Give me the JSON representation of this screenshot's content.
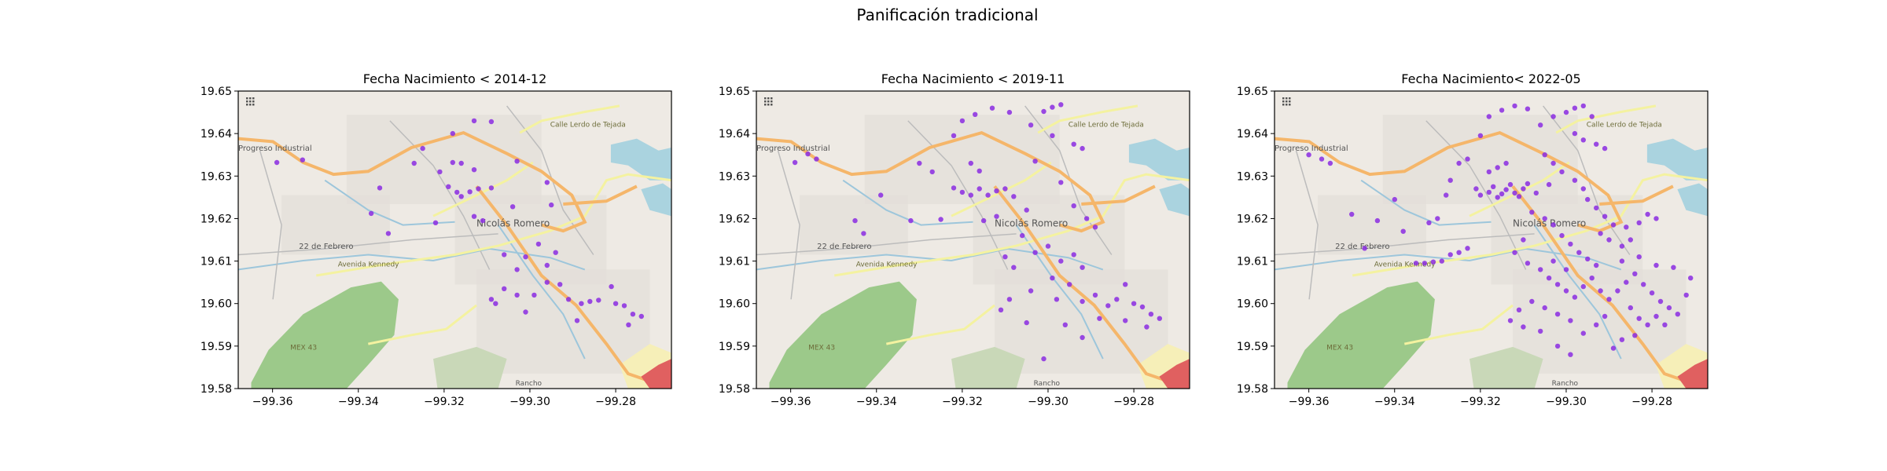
{
  "figure": {
    "suptitle": "Panificación tradicional"
  },
  "colors": {
    "point": "#8a2be2",
    "water": "#aad3df",
    "river": "#9dc6db",
    "park": "#9cc98a",
    "land": "#eeeae4",
    "primary_road": "#f5b66a",
    "secondary_road": "#f4f2a0",
    "motorway": "#e06060"
  },
  "map_labels": {
    "town": "Nicolás Romero",
    "district_1": "Progreso Industrial",
    "district_2": "22 de Febrero",
    "road_1": "Avenida Kennedy",
    "road_2": "Calle Lerdo de Tejada",
    "road_3": "MEX 43",
    "area_1": "Rancho"
  },
  "chart_data": [
    {
      "type": "scatter",
      "title": "Fecha Nacimiento < 2014-12",
      "xlim": [
        -99.368,
        -99.267
      ],
      "ylim": [
        19.58,
        19.65
      ],
      "xticks": [
        "−99.36",
        "−99.34",
        "−99.32",
        "−99.30",
        "−99.28"
      ],
      "yticks": [
        "19.58",
        "19.59",
        "19.60",
        "19.61",
        "19.62",
        "19.63",
        "19.64",
        "19.65"
      ],
      "background": "OpenStreetMap basemap",
      "points": [
        [
          -99.359,
          19.6332
        ],
        [
          -99.353,
          19.6338
        ],
        [
          -99.335,
          19.6272
        ],
        [
          -99.337,
          19.6212
        ],
        [
          -99.333,
          19.6165
        ],
        [
          -99.327,
          19.633
        ],
        [
          -99.321,
          19.631
        ],
        [
          -99.322,
          19.619
        ],
        [
          -99.325,
          19.6365
        ],
        [
          -99.318,
          19.64
        ],
        [
          -99.313,
          19.643
        ],
        [
          -99.309,
          19.6428
        ],
        [
          -99.318,
          19.6332
        ],
        [
          -99.316,
          19.633
        ],
        [
          -99.313,
          19.6315
        ],
        [
          -99.319,
          19.6275
        ],
        [
          -99.317,
          19.6262
        ],
        [
          -99.316,
          19.6252
        ],
        [
          -99.314,
          19.6263
        ],
        [
          -99.312,
          19.627
        ],
        [
          -99.309,
          19.6272
        ],
        [
          -99.313,
          19.6205
        ],
        [
          -99.311,
          19.6195
        ],
        [
          -99.304,
          19.6228
        ],
        [
          -99.303,
          19.6335
        ],
        [
          -99.296,
          19.6285
        ],
        [
          -99.295,
          19.6232
        ],
        [
          -99.306,
          19.6115
        ],
        [
          -99.301,
          19.611
        ],
        [
          -99.298,
          19.614
        ],
        [
          -99.296,
          19.609
        ],
        [
          -99.294,
          19.612
        ],
        [
          -99.303,
          19.608
        ],
        [
          -99.306,
          19.6035
        ],
        [
          -99.303,
          19.602
        ],
        [
          -99.309,
          19.601
        ],
        [
          -99.299,
          19.602
        ],
        [
          -99.296,
          19.605
        ],
        [
          -99.293,
          19.6045
        ],
        [
          -99.291,
          19.601
        ],
        [
          -99.288,
          19.6
        ],
        [
          -99.286,
          19.6005
        ],
        [
          -99.284,
          19.6008
        ],
        [
          -99.281,
          19.604
        ],
        [
          -99.28,
          19.6
        ],
        [
          -99.278,
          19.5995
        ],
        [
          -99.276,
          19.5975
        ],
        [
          -99.274,
          19.597
        ],
        [
          -99.277,
          19.595
        ],
        [
          -99.289,
          19.596
        ],
        [
          -99.308,
          19.6
        ],
        [
          -99.301,
          19.598
        ]
      ]
    },
    {
      "type": "scatter",
      "title": "Fecha Nacimiento < 2019-11",
      "xlim": [
        -99.368,
        -99.267
      ],
      "ylim": [
        19.58,
        19.65
      ],
      "xticks": [
        "−99.36",
        "−99.34",
        "−99.32",
        "−99.30",
        "−99.28"
      ],
      "yticks": [
        "19.58",
        "19.59",
        "19.60",
        "19.61",
        "19.62",
        "19.63",
        "19.64",
        "19.65"
      ],
      "background": "OpenStreetMap basemap",
      "points": [
        [
          -99.359,
          19.6332
        ],
        [
          -99.356,
          19.6352
        ],
        [
          -99.354,
          19.634
        ],
        [
          -99.345,
          19.6195
        ],
        [
          -99.343,
          19.6165
        ],
        [
          -99.339,
          19.6255
        ],
        [
          -99.332,
          19.6195
        ],
        [
          -99.33,
          19.633
        ],
        [
          -99.327,
          19.631
        ],
        [
          -99.325,
          19.6198
        ],
        [
          -99.322,
          19.6395
        ],
        [
          -99.32,
          19.643
        ],
        [
          -99.317,
          19.6445
        ],
        [
          -99.313,
          19.646
        ],
        [
          -99.309,
          19.645
        ],
        [
          -99.304,
          19.642
        ],
        [
          -99.301,
          19.6452
        ],
        [
          -99.299,
          19.6462
        ],
        [
          -99.297,
          19.6468
        ],
        [
          -99.299,
          19.6395
        ],
        [
          -99.294,
          19.6375
        ],
        [
          -99.292,
          19.6365
        ],
        [
          -99.318,
          19.633
        ],
        [
          -99.316,
          19.6312
        ],
        [
          -99.322,
          19.6272
        ],
        [
          -99.32,
          19.6262
        ],
        [
          -99.318,
          19.6255
        ],
        [
          -99.316,
          19.627
        ],
        [
          -99.314,
          19.6255
        ],
        [
          -99.312,
          19.6265
        ],
        [
          -99.31,
          19.627
        ],
        [
          -99.308,
          19.6252
        ],
        [
          -99.312,
          19.6205
        ],
        [
          -99.315,
          19.6195
        ],
        [
          -99.305,
          19.622
        ],
        [
          -99.303,
          19.6335
        ],
        [
          -99.297,
          19.6285
        ],
        [
          -99.294,
          19.623
        ],
        [
          -99.291,
          19.62
        ],
        [
          -99.289,
          19.618
        ],
        [
          -99.306,
          19.616
        ],
        [
          -99.31,
          19.611
        ],
        [
          -99.308,
          19.6085
        ],
        [
          -99.303,
          19.612
        ],
        [
          -99.3,
          19.6135
        ],
        [
          -99.297,
          19.61
        ],
        [
          -99.294,
          19.6115
        ],
        [
          -99.292,
          19.6085
        ],
        [
          -99.299,
          19.606
        ],
        [
          -99.304,
          19.603
        ],
        [
          -99.309,
          19.601
        ],
        [
          -99.311,
          19.5985
        ],
        [
          -99.298,
          19.601
        ],
        [
          -99.295,
          19.6045
        ],
        [
          -99.292,
          19.6005
        ],
        [
          -99.289,
          19.602
        ],
        [
          -99.286,
          19.5995
        ],
        [
          -99.284,
          19.601
        ],
        [
          -99.282,
          19.6045
        ],
        [
          -99.28,
          19.6
        ],
        [
          -99.278,
          19.5992
        ],
        [
          -99.276,
          19.5975
        ],
        [
          -99.274,
          19.5965
        ],
        [
          -99.277,
          19.5945
        ],
        [
          -99.282,
          19.596
        ],
        [
          -99.288,
          19.5965
        ],
        [
          -99.292,
          19.592
        ],
        [
          -99.301,
          19.587
        ],
        [
          -99.296,
          19.595
        ],
        [
          -99.305,
          19.5955
        ]
      ]
    },
    {
      "type": "scatter",
      "title": "Fecha Nacimiento< 2022-05",
      "xlim": [
        -99.368,
        -99.267
      ],
      "ylim": [
        19.58,
        19.65
      ],
      "xticks": [
        "−99.36",
        "−99.34",
        "−99.32",
        "−99.30",
        "−99.28"
      ],
      "yticks": [
        "19.58",
        "19.59",
        "19.60",
        "19.61",
        "19.62",
        "19.63",
        "19.64",
        "19.65"
      ],
      "background": "OpenStreetMap basemap",
      "points": [
        [
          -99.36,
          19.635
        ],
        [
          -99.357,
          19.634
        ],
        [
          -99.355,
          19.633
        ],
        [
          -99.35,
          19.621
        ],
        [
          -99.347,
          19.613
        ],
        [
          -99.344,
          19.6195
        ],
        [
          -99.34,
          19.6245
        ],
        [
          -99.338,
          19.617
        ],
        [
          -99.335,
          19.6095
        ],
        [
          -99.333,
          19.6095
        ],
        [
          -99.331,
          19.6098
        ],
        [
          -99.329,
          19.61
        ],
        [
          -99.327,
          19.6115
        ],
        [
          -99.325,
          19.612
        ],
        [
          -99.323,
          19.613
        ],
        [
          -99.332,
          19.619
        ],
        [
          -99.33,
          19.62
        ],
        [
          -99.328,
          19.6255
        ],
        [
          -99.327,
          19.629
        ],
        [
          -99.325,
          19.633
        ],
        [
          -99.323,
          19.634
        ],
        [
          -99.321,
          19.627
        ],
        [
          -99.32,
          19.6255
        ],
        [
          -99.318,
          19.6262
        ],
        [
          -99.317,
          19.6275
        ],
        [
          -99.316,
          19.625
        ],
        [
          -99.315,
          19.6258
        ],
        [
          -99.314,
          19.6268
        ],
        [
          -99.313,
          19.628
        ],
        [
          -99.312,
          19.626
        ],
        [
          -99.311,
          19.6252
        ],
        [
          -99.31,
          19.627
        ],
        [
          -99.309,
          19.6282
        ],
        [
          -99.318,
          19.631
        ],
        [
          -99.316,
          19.632
        ],
        [
          -99.314,
          19.633
        ],
        [
          -99.32,
          19.6395
        ],
        [
          -99.318,
          19.644
        ],
        [
          -99.315,
          19.6455
        ],
        [
          -99.312,
          19.6465
        ],
        [
          -99.309,
          19.6458
        ],
        [
          -99.306,
          19.642
        ],
        [
          -99.303,
          19.644
        ],
        [
          -99.3,
          19.645
        ],
        [
          -99.298,
          19.646
        ],
        [
          -99.296,
          19.6465
        ],
        [
          -99.294,
          19.644
        ],
        [
          -99.298,
          19.64
        ],
        [
          -99.296,
          19.6385
        ],
        [
          -99.293,
          19.6375
        ],
        [
          -99.291,
          19.6365
        ],
        [
          -99.305,
          19.635
        ],
        [
          -99.303,
          19.633
        ],
        [
          -99.301,
          19.631
        ],
        [
          -99.298,
          19.629
        ],
        [
          -99.296,
          19.627
        ],
        [
          -99.295,
          19.6245
        ],
        [
          -99.293,
          19.6225
        ],
        [
          -99.291,
          19.6205
        ],
        [
          -99.289,
          19.6185
        ],
        [
          -99.286,
          19.618
        ],
        [
          -99.283,
          19.619
        ],
        [
          -99.281,
          19.621
        ],
        [
          -99.279,
          19.62
        ],
        [
          -99.308,
          19.6215
        ],
        [
          -99.305,
          19.62
        ],
        [
          -99.303,
          19.6185
        ],
        [
          -99.301,
          19.616
        ],
        [
          -99.299,
          19.614
        ],
        [
          -99.297,
          19.612
        ],
        [
          -99.295,
          19.6105
        ],
        [
          -99.293,
          19.609
        ],
        [
          -99.31,
          19.615
        ],
        [
          -99.312,
          19.612
        ],
        [
          -99.309,
          19.6095
        ],
        [
          -99.306,
          19.608
        ],
        [
          -99.304,
          19.606
        ],
        [
          -99.302,
          19.6045
        ],
        [
          -99.3,
          19.603
        ],
        [
          -99.298,
          19.6015
        ],
        [
          -99.296,
          19.604
        ],
        [
          -99.294,
          19.606
        ],
        [
          -99.292,
          19.603
        ],
        [
          -99.29,
          19.601
        ],
        [
          -99.288,
          19.603
        ],
        [
          -99.286,
          19.605
        ],
        [
          -99.284,
          19.607
        ],
        [
          -99.282,
          19.6045
        ],
        [
          -99.28,
          19.6025
        ],
        [
          -99.278,
          19.6005
        ],
        [
          -99.276,
          19.599
        ],
        [
          -99.274,
          19.5975
        ],
        [
          -99.272,
          19.602
        ],
        [
          -99.271,
          19.606
        ],
        [
          -99.275,
          19.6085
        ],
        [
          -99.279,
          19.609
        ],
        [
          -99.283,
          19.611
        ],
        [
          -99.287,
          19.61
        ],
        [
          -99.285,
          19.599
        ],
        [
          -99.283,
          19.5965
        ],
        [
          -99.281,
          19.595
        ],
        [
          -99.279,
          19.597
        ],
        [
          -99.277,
          19.595
        ],
        [
          -99.291,
          19.597
        ],
        [
          -99.293,
          19.595
        ],
        [
          -99.296,
          19.593
        ],
        [
          -99.299,
          19.596
        ],
        [
          -99.302,
          19.5975
        ],
        [
          -99.305,
          19.599
        ],
        [
          -99.308,
          19.6005
        ],
        [
          -99.311,
          19.5985
        ],
        [
          -99.313,
          19.596
        ],
        [
          -99.31,
          19.5945
        ],
        [
          -99.306,
          19.5935
        ],
        [
          -99.302,
          19.59
        ],
        [
          -99.299,
          19.588
        ],
        [
          -99.289,
          19.5895
        ],
        [
          -99.287,
          19.5915
        ],
        [
          -99.284,
          19.5925
        ],
        [
          -99.3,
          19.608
        ],
        [
          -99.303,
          19.61
        ],
        [
          -99.29,
          19.615
        ],
        [
          -99.292,
          19.6165
        ],
        [
          -99.287,
          19.6135
        ],
        [
          -99.285,
          19.615
        ],
        [
          -99.307,
          19.626
        ],
        [
          -99.304,
          19.628
        ]
      ]
    }
  ]
}
